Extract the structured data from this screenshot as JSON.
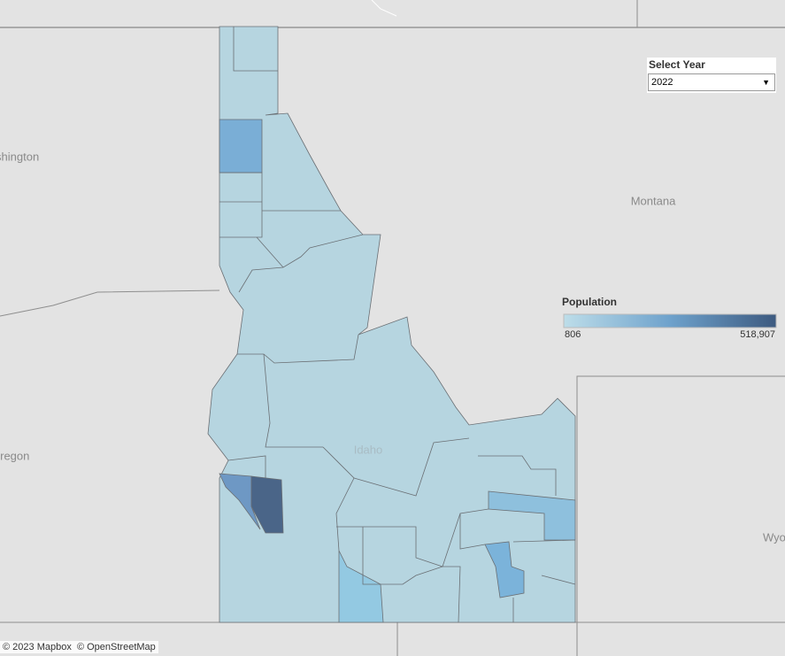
{
  "map": {
    "labels": {
      "washington": "Washington",
      "montana": "Montana",
      "oregon": "Oregon",
      "idaho": "Idaho",
      "wyoming": "Wyoming"
    },
    "attribution": [
      "© 2023 Mapbox",
      "© OpenStreetMap"
    ]
  },
  "filter": {
    "title": "Select Year",
    "selected": "2022"
  },
  "legend": {
    "title": "Population",
    "min": {
      "value": 806,
      "label": "806"
    },
    "max": {
      "value": 518907,
      "label": "518,907"
    }
  }
}
